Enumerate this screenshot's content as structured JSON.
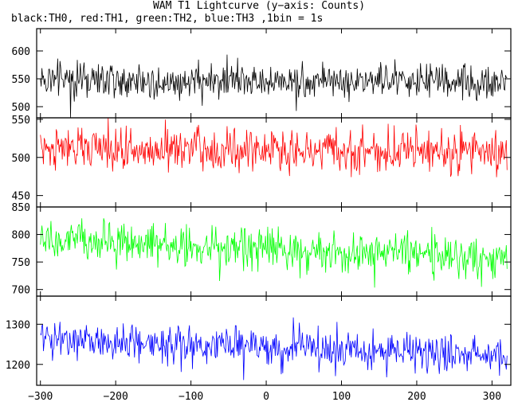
{
  "chart_data": {
    "type": "line",
    "title": "WAM T1 Lightcurve (y−axis: Counts)",
    "subtitle": "black:TH0, red:TH1, green:TH2, blue:TH3 ,1bin = 1s",
    "xlabel": "",
    "ylabel": "",
    "xlim": [
      -305,
      325
    ],
    "x_ticks": [
      -300,
      -200,
      -100,
      0,
      100,
      200,
      300
    ],
    "x_tick_labels": [
      "−300",
      "−200",
      "−100",
      "0",
      "100",
      "200",
      "300"
    ],
    "bin_seconds": 1,
    "grid": false,
    "panels": [
      {
        "series": "TH0",
        "color": "#000000",
        "ylim": [
          480,
          640
        ],
        "y_ticks": [
          500,
          550,
          600
        ],
        "mean_start": 548,
        "mean_end": 545,
        "noise_amplitude": 24
      },
      {
        "series": "TH1",
        "color": "#ff0000",
        "ylim": [
          435,
          552
        ],
        "y_ticks": [
          450,
          500,
          550
        ],
        "mean_start": 512,
        "mean_end": 507,
        "noise_amplitude": 22
      },
      {
        "series": "TH2",
        "color": "#00ff00",
        "ylim": [
          688,
          850
        ],
        "y_ticks": [
          700,
          750,
          800,
          850
        ],
        "mean_start": 790,
        "mean_end": 755,
        "noise_amplitude": 28
      },
      {
        "series": "TH3",
        "color": "#0000ff",
        "ylim": [
          1148,
          1370
        ],
        "y_ticks": [
          1200,
          1300
        ],
        "mean_start": 1262,
        "mean_end": 1222,
        "noise_amplitude": 36
      }
    ]
  }
}
